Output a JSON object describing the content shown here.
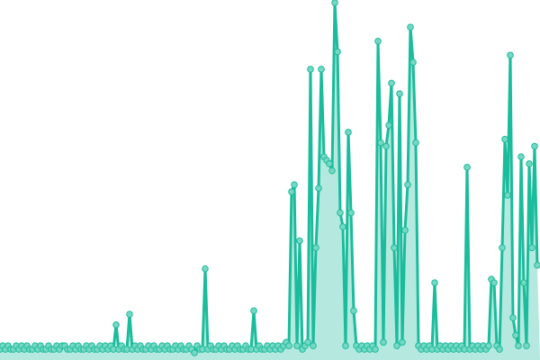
{
  "chart_data": {
    "type": "line",
    "markers": true,
    "area_fill": true,
    "grid": false,
    "axes_visible": false,
    "legend": "none",
    "colors": {
      "line": "#1abc9c",
      "marker_fill": "#76d7c4",
      "marker_stroke": "#1abc9c",
      "area": "#a3e4d7"
    },
    "ylim": [
      0,
      100
    ],
    "values": [
      1,
      2,
      1,
      2,
      1,
      1,
      2,
      1,
      2,
      1,
      2,
      1,
      1,
      2,
      1,
      2,
      1,
      1,
      2,
      1,
      1,
      2,
      1,
      2,
      2,
      1,
      1,
      2,
      1,
      2,
      1,
      1,
      2,
      1,
      2,
      1,
      1,
      2,
      1,
      2,
      1,
      2,
      1,
      8,
      1,
      2,
      1,
      1,
      11,
      1,
      2,
      1,
      2,
      1,
      1,
      2,
      1,
      2,
      1,
      1,
      2,
      1,
      2,
      1,
      1,
      2,
      1,
      2,
      1,
      1,
      2,
      1,
      0,
      2,
      1,
      1,
      24,
      1,
      2,
      1,
      1,
      2,
      1,
      2,
      1,
      1,
      2,
      1,
      2,
      1,
      1,
      2,
      1,
      1,
      12,
      1,
      2,
      1,
      1,
      2,
      1,
      2,
      1,
      2,
      1,
      2,
      3,
      2,
      46,
      48,
      2,
      32,
      1,
      2,
      3,
      81,
      2,
      30,
      47,
      81,
      56,
      55,
      54,
      52,
      100,
      86,
      40,
      36,
      2,
      63,
      40,
      12,
      2,
      1,
      2,
      1,
      2,
      1,
      2,
      1,
      89,
      60,
      3,
      59,
      65,
      77,
      30,
      2,
      74,
      3,
      35,
      48,
      93,
      83,
      60,
      2,
      1,
      2,
      1,
      2,
      1,
      20,
      1,
      2,
      1,
      2,
      1,
      2,
      1,
      2,
      1,
      2,
      1,
      53,
      1,
      2,
      1,
      2,
      1,
      2,
      1,
      2,
      21,
      20,
      2,
      1,
      30,
      61,
      45,
      85,
      10,
      5,
      2,
      56,
      20,
      2,
      54,
      30,
      59,
      25
    ]
  }
}
